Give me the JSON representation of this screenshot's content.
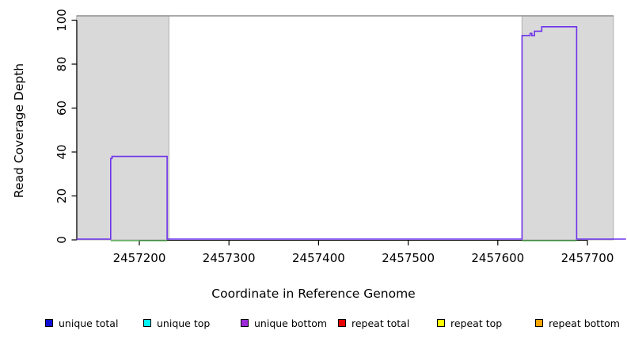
{
  "chart_data": {
    "type": "line",
    "title": "",
    "xlabel": "Coordinate in Reference Genome",
    "ylabel": "Read Coverage Depth",
    "xlim": [
      2457130,
      2457744
    ],
    "ylim": [
      0,
      102
    ],
    "x_ticks": [
      2457200,
      2457300,
      2457400,
      2457500,
      2457600,
      2457700
    ],
    "y_ticks": [
      0,
      20,
      40,
      60,
      80,
      100
    ],
    "grid": false,
    "band_color": "#d9d9d9",
    "band_border_color": "#aeaeae",
    "repeat_regions": [
      {
        "x0": 2457130,
        "x1": 2457233
      },
      {
        "x0": 2457627,
        "x1": 2457729
      }
    ],
    "top_boundary_line": {
      "y": 102,
      "x0": 2457130,
      "x1": 2457729,
      "color": "#8f8f8f"
    },
    "series": [
      {
        "name": "unique bottom coverage",
        "color": "#6e32eb",
        "style": "step-line",
        "points": [
          [
            2457130,
            0
          ],
          [
            2457168,
            0
          ],
          [
            2457168,
            37
          ],
          [
            2457169.5,
            37
          ],
          [
            2457169.5,
            38
          ],
          [
            2457231,
            38
          ],
          [
            2457231,
            0
          ],
          [
            2457627,
            0
          ],
          [
            2457627,
            93
          ],
          [
            2457636,
            93
          ],
          [
            2457636,
            94
          ],
          [
            2457638,
            94
          ],
          [
            2457638,
            93
          ],
          [
            2457641,
            93
          ],
          [
            2457641,
            95
          ],
          [
            2457649,
            95
          ],
          [
            2457649,
            97
          ],
          [
            2457688,
            97
          ],
          [
            2457688,
            0
          ],
          [
            2457743,
            0
          ]
        ]
      },
      {
        "name": "zero coverage marker",
        "color": "#5bb05b",
        "style": "zero-segments",
        "segments": [
          [
            2457168,
            2457231
          ],
          [
            2457627,
            2457688
          ]
        ]
      }
    ],
    "legend": [
      {
        "label": "unique total",
        "color": "#0f0fd2"
      },
      {
        "label": "unique top",
        "color": "#00f5f5"
      },
      {
        "label": "unique bottom",
        "color": "#9a2bd6"
      },
      {
        "label": "repeat total",
        "color": "#e60000"
      },
      {
        "label": "repeat top",
        "color": "#ffff00"
      },
      {
        "label": "repeat bottom",
        "color": "#ffa500"
      }
    ],
    "legend_position": "bottom"
  }
}
